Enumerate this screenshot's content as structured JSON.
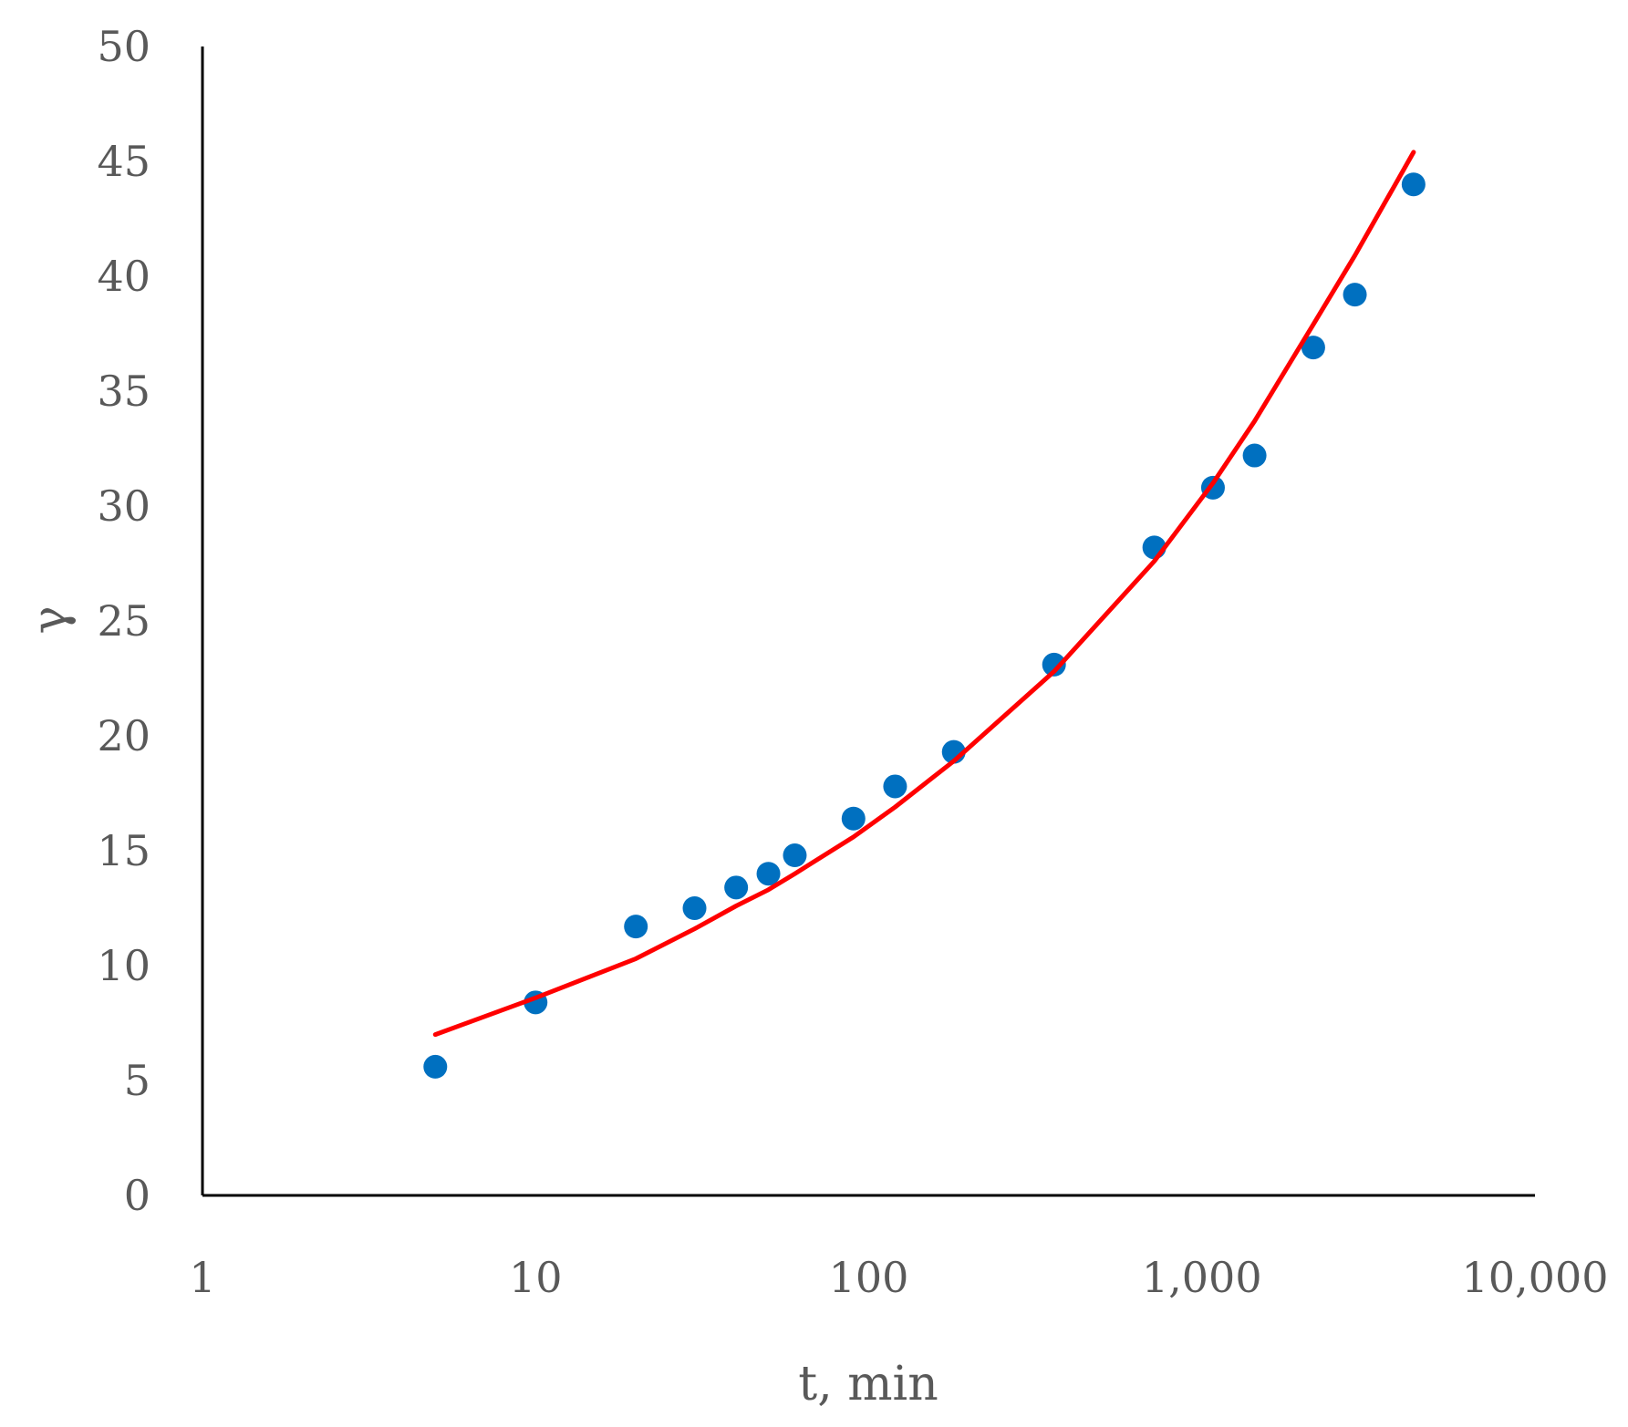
{
  "chart_data": {
    "type": "scatter",
    "title": "",
    "xlabel": "t, min",
    "ylabel": "γ",
    "xscale": "log",
    "xlim": [
      1,
      10000
    ],
    "ylim": [
      0,
      50
    ],
    "x_ticks": [
      1,
      10,
      100,
      1000,
      10000
    ],
    "x_tick_labels": [
      "1",
      "10",
      "100",
      "1,000",
      "10,000"
    ],
    "y_ticks": [
      0,
      5,
      10,
      15,
      20,
      25,
      30,
      35,
      40,
      45,
      50
    ],
    "y_tick_labels": [
      "0",
      "5",
      "10",
      "15",
      "20",
      "25",
      "30",
      "35",
      "40",
      "45",
      "50"
    ],
    "grid": false,
    "legend": "none",
    "series": [
      {
        "kind": "scatter",
        "color": "#0070C0",
        "x": [
          5,
          10,
          20,
          30,
          40,
          50,
          60,
          90,
          120,
          180,
          360,
          720,
          1080,
          1440,
          2160,
          2880,
          4320
        ],
        "y": [
          5.6,
          8.4,
          11.7,
          12.5,
          13.4,
          14.0,
          14.8,
          16.4,
          17.8,
          19.3,
          23.1,
          28.2,
          30.8,
          32.2,
          36.9,
          39.2,
          44.0
        ]
      },
      {
        "kind": "line",
        "color": "#FF0000",
        "x": [
          5,
          10,
          20,
          30,
          40,
          50,
          60,
          90,
          120,
          180,
          360,
          720,
          1080,
          1440,
          2160,
          2880,
          4320
        ],
        "y": [
          7.0,
          8.6,
          10.3,
          11.6,
          12.6,
          13.3,
          14.0,
          15.6,
          16.9,
          18.9,
          22.8,
          27.6,
          31.0,
          33.7,
          37.9,
          40.9,
          45.4
        ]
      }
    ]
  }
}
